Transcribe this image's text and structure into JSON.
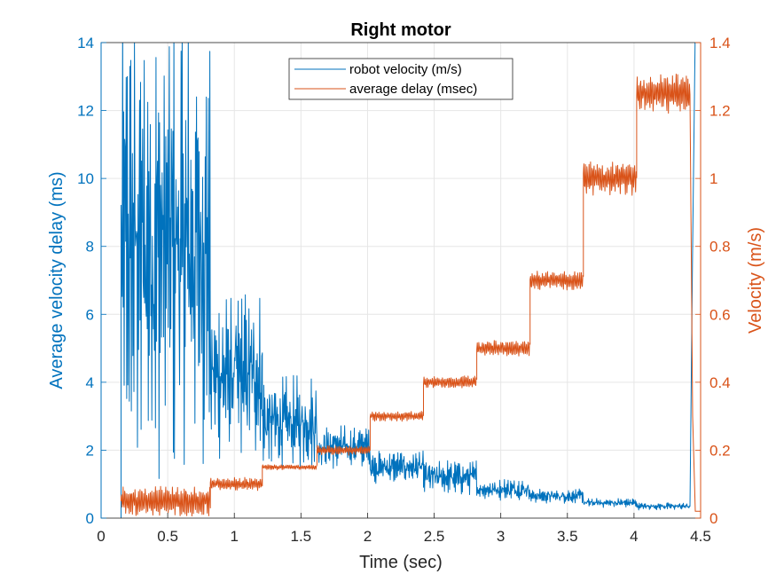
{
  "chart_data": {
    "type": "line",
    "title": "Right motor",
    "xlabel": "Time (sec)",
    "ylabel_left": "Average velocity delay (ms)",
    "ylabel_right": "Velocity (m/s)",
    "xlim": [
      0,
      4.5
    ],
    "ylim_left": [
      0,
      14
    ],
    "ylim_right": [
      0,
      1.4
    ],
    "x_ticks": [
      "0",
      "0.5",
      "1",
      "1.5",
      "2",
      "2.5",
      "3",
      "3.5",
      "4",
      "4.5"
    ],
    "y_left_ticks": [
      "0",
      "2",
      "4",
      "6",
      "8",
      "10",
      "12",
      "14"
    ],
    "y_right_ticks": [
      "0",
      "0.2",
      "0.4",
      "0.6",
      "0.8",
      "1",
      "1.2",
      "1.4"
    ],
    "grid": true,
    "legend_position": "top-center",
    "colors": {
      "blue": "#0072BD",
      "orange": "#D95319",
      "grid": "#e6e6e6"
    },
    "series": [
      {
        "name": "robot velocity (m/s)",
        "axis": "left",
        "color": "#0072BD",
        "segments": [
          {
            "x0": 0.15,
            "x1": 0.82,
            "mean": 8.0,
            "amp": 6.5
          },
          {
            "x0": 0.82,
            "x1": 1.21,
            "mean": 4.2,
            "amp": 2.3
          },
          {
            "x0": 1.21,
            "x1": 1.62,
            "mean": 2.8,
            "amp": 1.3
          },
          {
            "x0": 1.62,
            "x1": 2.02,
            "mean": 2.1,
            "amp": 0.6
          },
          {
            "x0": 2.02,
            "x1": 2.42,
            "mean": 1.5,
            "amp": 0.45
          },
          {
            "x0": 2.42,
            "x1": 2.82,
            "mean": 1.2,
            "amp": 0.5
          },
          {
            "x0": 2.82,
            "x1": 3.22,
            "mean": 0.85,
            "amp": 0.3
          },
          {
            "x0": 3.22,
            "x1": 3.62,
            "mean": 0.65,
            "amp": 0.2
          },
          {
            "x0": 3.62,
            "x1": 4.02,
            "mean": 0.45,
            "amp": 0.13
          },
          {
            "x0": 4.02,
            "x1": 4.42,
            "mean": 0.35,
            "amp": 0.1
          }
        ]
      },
      {
        "name": "average delay (msec)",
        "axis": "right",
        "color": "#D95319",
        "segments": [
          {
            "x0": 0.15,
            "x1": 0.82,
            "mean": 0.05,
            "amp": 0.045
          },
          {
            "x0": 0.82,
            "x1": 1.21,
            "mean": 0.1,
            "amp": 0.02
          },
          {
            "x0": 1.21,
            "x1": 1.62,
            "mean": 0.15,
            "amp": 0.008
          },
          {
            "x0": 1.62,
            "x1": 2.02,
            "mean": 0.2,
            "amp": 0.015
          },
          {
            "x0": 2.02,
            "x1": 2.42,
            "mean": 0.3,
            "amp": 0.015
          },
          {
            "x0": 2.42,
            "x1": 2.82,
            "mean": 0.4,
            "amp": 0.02
          },
          {
            "x0": 2.82,
            "x1": 3.22,
            "mean": 0.5,
            "amp": 0.025
          },
          {
            "x0": 3.22,
            "x1": 3.62,
            "mean": 0.7,
            "amp": 0.03
          },
          {
            "x0": 3.62,
            "x1": 4.02,
            "mean": 1.0,
            "amp": 0.05
          },
          {
            "x0": 4.02,
            "x1": 4.42,
            "mean": 1.25,
            "amp": 0.06
          }
        ]
      }
    ]
  }
}
